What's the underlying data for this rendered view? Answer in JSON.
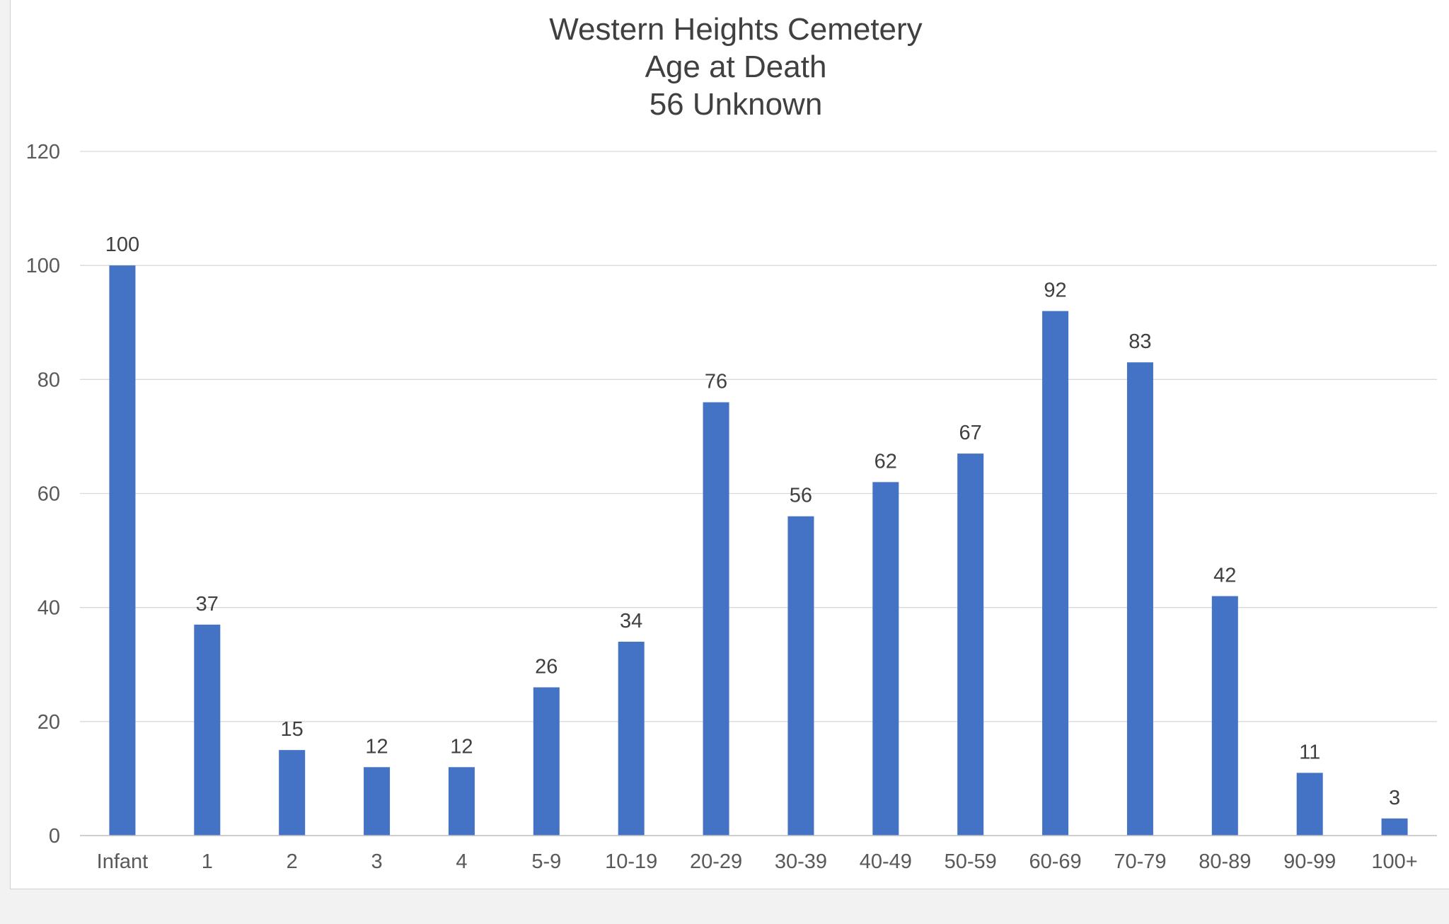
{
  "chart_data": {
    "type": "bar",
    "title": [
      "Western Heights Cemetery",
      "Age at Death",
      "56 Unknown"
    ],
    "categories": [
      "Infant",
      "1",
      "2",
      "3",
      "4",
      "5-9",
      "10-19",
      "20-29",
      "30-39",
      "40-49",
      "50-59",
      "60-69",
      "70-79",
      "80-89",
      "90-99",
      "100+"
    ],
    "values": [
      100,
      37,
      15,
      12,
      12,
      26,
      34,
      76,
      56,
      62,
      67,
      92,
      83,
      42,
      11,
      3
    ],
    "ylim": [
      0,
      120
    ],
    "yticks": [
      0,
      20,
      40,
      60,
      80,
      100,
      120
    ],
    "xlabel": "",
    "ylabel": "",
    "grid": true,
    "legend": "none",
    "data_labels": true,
    "bar_color": "#4472c4"
  }
}
